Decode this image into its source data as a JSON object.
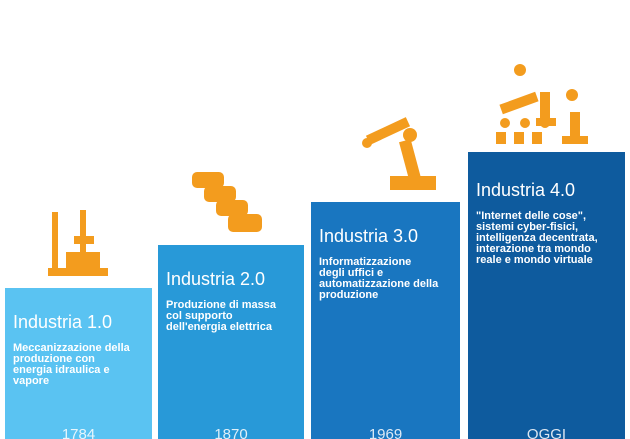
{
  "columns": [
    {
      "title": "Industria 1.0",
      "description": [
        "Meccanizzazione della",
        "produzione con",
        "energia idraulica e",
        "vapore"
      ],
      "year": "1784"
    },
    {
      "title": "Industria 2.0",
      "description": [
        "Produzione di massa",
        "col supporto",
        "dell'energia elettrica"
      ],
      "year": "1870"
    },
    {
      "title": "Industria 3.0",
      "description": [
        "Informatizzazione",
        "degli uffici e",
        "automatizzazione della",
        "produzione"
      ],
      "year": "1969"
    },
    {
      "title": "Industria 4.0",
      "description": [
        "\"Internet delle cose\",",
        "sistemi cyber-fisici,",
        "intelligenza decentrata,",
        "interazione tra mondo",
        "reale e mondo virtuale"
      ],
      "year": "OGGI"
    }
  ]
}
